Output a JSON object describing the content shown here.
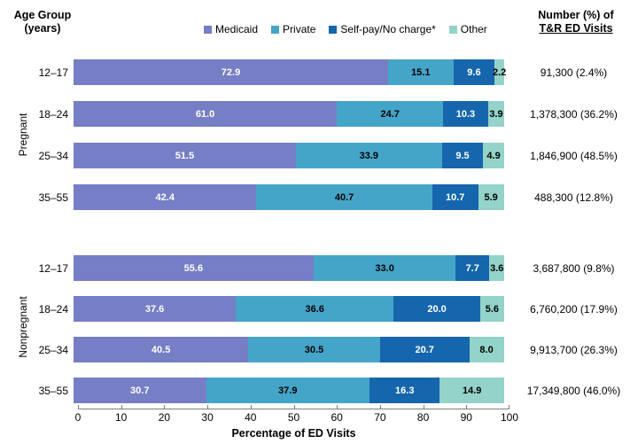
{
  "header": {
    "left_title_line1": "Age Group",
    "left_title_line2": "(years)",
    "right_title_line1": "Number (%) of",
    "right_title_line2": "T&R ED Visits"
  },
  "colors": {
    "medicaid": "#767EC5",
    "private": "#44A5C9",
    "selfpay": "#1566AD",
    "other": "#93D3C9",
    "axis": "#7F7F7F"
  },
  "chart_data": {
    "type": "bar",
    "orientation": "horizontal",
    "stacked": true,
    "xlabel": "Percentage of ED Visits",
    "xlim": [
      0,
      100
    ],
    "x_ticks": [
      "0",
      "10",
      "20",
      "30",
      "40",
      "50",
      "60",
      "70",
      "80",
      "90",
      "100"
    ],
    "series_names": [
      "Medicaid",
      "Private",
      "Self-pay/No charge*",
      "Other"
    ],
    "legend_position": "top",
    "groups": [
      {
        "label": "Pregnant",
        "rows": [
          {
            "age": "12–17",
            "values": [
              "72.9",
              "15.1",
              "9.6",
              "2.2"
            ],
            "count": "91,300 (2.4%)"
          },
          {
            "age": "18–24",
            "values": [
              "61.0",
              "24.7",
              "10.3",
              "3.9"
            ],
            "count": "1,378,300 (36.2%)"
          },
          {
            "age": "25–34",
            "values": [
              "51.5",
              "33.9",
              "9.5",
              "4.9"
            ],
            "count": "1,846,900 (48.5%)"
          },
          {
            "age": "35–55",
            "values": [
              "42.4",
              "40.7",
              "10.7",
              "5.9"
            ],
            "count": "488,300 (12.8%)"
          }
        ]
      },
      {
        "label": "Nonpregnant",
        "rows": [
          {
            "age": "12–17",
            "values": [
              "55.6",
              "33.0",
              "7.7",
              "3.6"
            ],
            "count": "3,687,800 (9.8%)"
          },
          {
            "age": "18–24",
            "values": [
              "37.6",
              "36.6",
              "20.0",
              "5.6"
            ],
            "count": "6,760,200 (17.9%)"
          },
          {
            "age": "25–34",
            "values": [
              "40.5",
              "30.5",
              "20.7",
              "8.0"
            ],
            "count": "9,913,700 (26.3%)"
          },
          {
            "age": "35–55",
            "values": [
              "30.7",
              "37.9",
              "16.3",
              "14.9"
            ],
            "count": "17,349,800 (46.0%)"
          }
        ]
      }
    ]
  }
}
